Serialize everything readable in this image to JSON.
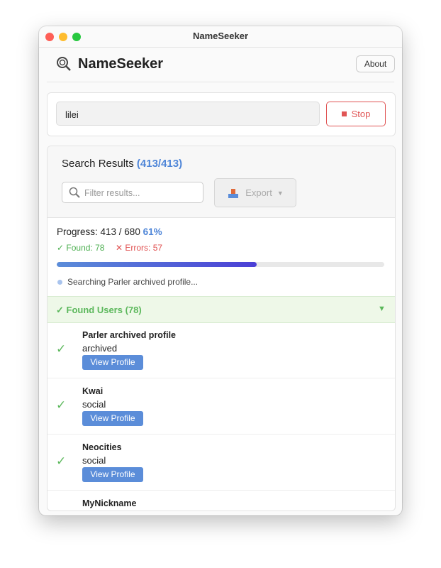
{
  "window": {
    "title": "NameSeeker"
  },
  "header": {
    "app_name": "NameSeeker",
    "about_button": "About"
  },
  "search": {
    "query": "lilei",
    "stop_button": "Stop"
  },
  "results": {
    "title": "Search Results",
    "count": "(413/413)",
    "filter_placeholder": "Filter results...",
    "export_button": "Export"
  },
  "progress": {
    "label": "Progress: 413 / 680",
    "percent_text": "61%",
    "percent": 61,
    "found": "✓ Found: 78",
    "errors": "✕ Errors: 57",
    "status": "Searching Parler archived profile..."
  },
  "found_section": {
    "title": "✓ Found Users (78)"
  },
  "items": [
    {
      "name": "Parler archived profile",
      "category": "archived",
      "button": "View Profile"
    },
    {
      "name": "Kwai",
      "category": "social",
      "button": "View Profile"
    },
    {
      "name": "Neocities",
      "category": "social",
      "button": "View Profile"
    },
    {
      "name": "MyNickname"
    }
  ]
}
